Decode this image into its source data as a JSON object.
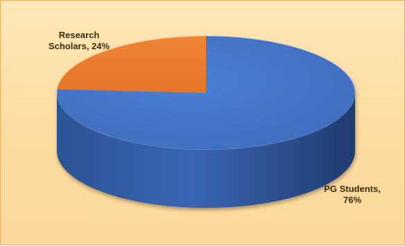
{
  "chart_data": {
    "type": "pie",
    "title": "",
    "legend": "none",
    "slices": [
      {
        "label": "PG Students",
        "value": 76,
        "value_label": "76%",
        "color": "#4472c4"
      },
      {
        "label": "Research Scholars",
        "value": 24,
        "value_label": "24%",
        "color": "#ed7d31"
      }
    ],
    "background_color": "#fddfa6"
  }
}
